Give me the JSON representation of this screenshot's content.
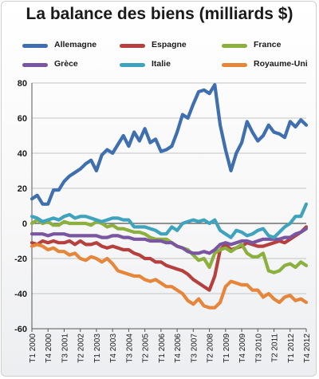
{
  "chart_data": {
    "type": "line",
    "title": "La balance des biens (milliards $)",
    "xlabel": "",
    "ylabel": "",
    "ylim": [
      -60,
      80
    ],
    "yticks": [
      80,
      60,
      40,
      20,
      0,
      -20,
      -40,
      -60
    ],
    "grid": true,
    "legend_position": "top",
    "quarters": [
      "T1 2000",
      "T2 2000",
      "T3 2000",
      "T4 2000",
      "T1 2001",
      "T2 2001",
      "T3 2001",
      "T4 2001",
      "T1 2002",
      "T2 2002",
      "T3 2002",
      "T4 2002",
      "T1 2003",
      "T2 2003",
      "T3 2003",
      "T4 2003",
      "T1 2004",
      "T2 2004",
      "T3 2004",
      "T4 2004",
      "T1 2005",
      "T2 2005",
      "T3 2005",
      "T4 2005",
      "T1 2006",
      "T2 2006",
      "T3 2006",
      "T4 2006",
      "T1 2007",
      "T2 2007",
      "T3 2007",
      "T4 2007",
      "T1 2008",
      "T2 2008",
      "T3 2008",
      "T4 2008",
      "T1 2009",
      "T2 2009",
      "T3 2009",
      "T4 2009",
      "T1 2010",
      "T2 2010",
      "T3 2010",
      "T4 2010",
      "T1 2011",
      "T2 2011",
      "T3 2011",
      "T4 2011",
      "T1 2012",
      "T2 2012",
      "T3 2012",
      "T4 2012"
    ],
    "xtick_labels": [
      "T1 2000",
      "T4 2000",
      "T3 2001",
      "T2 2002",
      "T1 2003",
      "T4 2003",
      "T3 2004",
      "T2 2005",
      "T1 2006",
      "T4 2006",
      "T3 2007",
      "T2 2008",
      "T1 2009",
      "T4 2009",
      "T3 2010",
      "T2 2011",
      "T1 2012",
      "T4 2012"
    ],
    "series": [
      {
        "name": "Allemagne",
        "color": "#3f6faf",
        "values": [
          14,
          16,
          11,
          11,
          19,
          19,
          24,
          27,
          29,
          31,
          34,
          36,
          30,
          39,
          42,
          40,
          45,
          50,
          44,
          52,
          47,
          54,
          46,
          48,
          41,
          42,
          44,
          52,
          62,
          60,
          68,
          75,
          76,
          74,
          79,
          56,
          42,
          30,
          40,
          46,
          58,
          52,
          47,
          50,
          56,
          52,
          51,
          49,
          58,
          55,
          59,
          56
        ]
      },
      {
        "name": "Espagne",
        "color": "#b5403d",
        "values": [
          -11,
          -12,
          -10,
          -11,
          -10,
          -11,
          -11,
          -10,
          -12,
          -10,
          -12,
          -12,
          -11,
          -13,
          -14,
          -13,
          -14,
          -15,
          -15,
          -17,
          -18,
          -20,
          -20,
          -22,
          -22,
          -24,
          -25,
          -26,
          -27,
          -29,
          -32,
          -34,
          -36,
          -38,
          -30,
          -15,
          -12,
          -15,
          -14,
          -13,
          -11,
          -12,
          -13,
          -13,
          -12,
          -11,
          -10,
          -11,
          -9,
          -7,
          -5,
          -2
        ]
      },
      {
        "name": "France",
        "color": "#8bb03e",
        "values": [
          0,
          2,
          0,
          1,
          -1,
          -1,
          1,
          0,
          0,
          0,
          0,
          -1,
          1,
          0,
          -2,
          -1,
          -3,
          -3,
          -4,
          -5,
          -5,
          -6,
          -8,
          -9,
          -9,
          -9,
          -11,
          -13,
          -14,
          -15,
          -18,
          -21,
          -20,
          -25,
          -17,
          -15,
          -14,
          -16,
          -14,
          -12,
          -17,
          -19,
          -19,
          -17,
          -27,
          -28,
          -27,
          -24,
          -23,
          -25,
          -22,
          -24
        ]
      },
      {
        "name": "Grèce",
        "color": "#7a56a0",
        "values": [
          -6,
          -6,
          -6,
          -7,
          -6,
          -6,
          -6,
          -7,
          -7,
          -7,
          -7,
          -7,
          -7,
          -8,
          -8,
          -7,
          -7,
          -8,
          -8,
          -9,
          -9,
          -9,
          -10,
          -10,
          -10,
          -11,
          -11,
          -13,
          -14,
          -16,
          -17,
          -17,
          -16,
          -17,
          -15,
          -12,
          -11,
          -12,
          -11,
          -10,
          -10,
          -11,
          -10,
          -9,
          -9,
          -9,
          -9,
          -8,
          -8,
          -6,
          -5,
          -3
        ]
      },
      {
        "name": "Italie",
        "color": "#40a3bd",
        "values": [
          4,
          3,
          1,
          2,
          3,
          2,
          4,
          5,
          3,
          4,
          4,
          3,
          2,
          1,
          2,
          3,
          3,
          2,
          2,
          -2,
          -2,
          -2,
          -3,
          -4,
          -6,
          -6,
          -2,
          -4,
          0,
          1,
          2,
          1,
          2,
          0,
          2,
          -4,
          -6,
          -8,
          -4,
          -5,
          -7,
          -6,
          -4,
          -3,
          -7,
          -8,
          -5,
          -2,
          0,
          4,
          4,
          11
        ]
      },
      {
        "name": "Royaume-Uni",
        "color": "#e5863a",
        "values": [
          -13,
          -12,
          -13,
          -15,
          -14,
          -16,
          -16,
          -18,
          -17,
          -20,
          -21,
          -19,
          -20,
          -22,
          -20,
          -23,
          -27,
          -28,
          -29,
          -30,
          -30,
          -32,
          -33,
          -32,
          -34,
          -36,
          -36,
          -38,
          -40,
          -44,
          -46,
          -43,
          -47,
          -48,
          -48,
          -45,
          -36,
          -33,
          -34,
          -35,
          -35,
          -38,
          -38,
          -42,
          -40,
          -43,
          -45,
          -42,
          -41,
          -44,
          -43,
          -45
        ]
      }
    ]
  }
}
